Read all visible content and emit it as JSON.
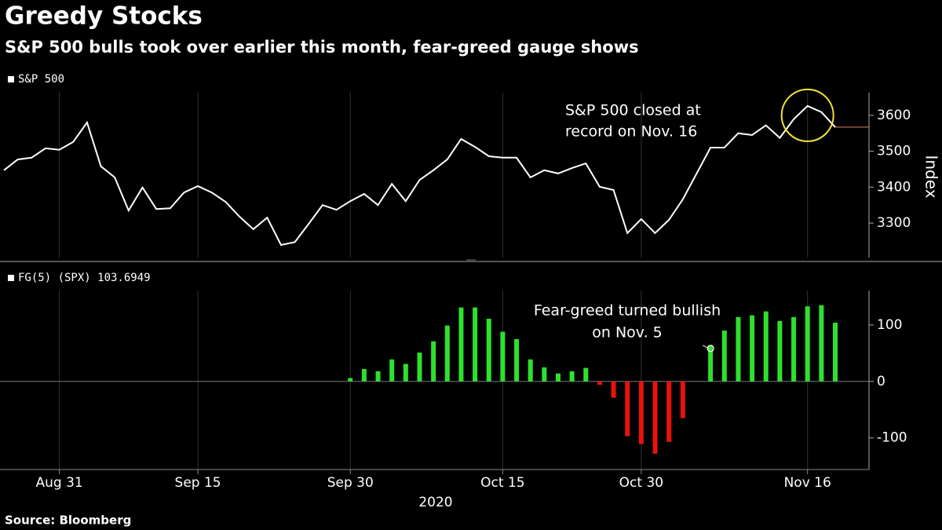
{
  "title": "Greedy Stocks",
  "subtitle": "S&P 500 bulls took over earlier this month, fear-greed gauge shows",
  "source": "Source: Bloomberg",
  "chart_data": [
    {
      "type": "line",
      "ylabel": "Index",
      "series": [
        {
          "name": "S&P 500",
          "color": "#ffffff",
          "values": [
            3447,
            3477,
            3482,
            3508,
            3504,
            3526,
            3580,
            3458,
            3427,
            3335,
            3399,
            3339,
            3341,
            3385,
            3403,
            3385,
            3359,
            3318,
            3283,
            3315,
            3239,
            3247,
            3298,
            3350,
            3337,
            3361,
            3381,
            3350,
            3409,
            3361,
            3420,
            3447,
            3477,
            3534,
            3512,
            3486,
            3482,
            3482,
            3427,
            3447,
            3438,
            3453,
            3466,
            3401,
            3392,
            3272,
            3311,
            3272,
            3309,
            3366,
            3438,
            3510,
            3510,
            3550,
            3545,
            3572,
            3537,
            3589,
            3626,
            3609,
            3567
          ]
        }
      ],
      "last_value_color": "#e0806a",
      "highlight_color": "#f2e33a",
      "ylim": [
        3204,
        3663
      ],
      "yticks": [
        3300,
        3400,
        3500,
        3600
      ],
      "annotation": {
        "lines": [
          "S&P 500 closed at",
          "record on Nov. 16"
        ]
      }
    },
    {
      "type": "bar",
      "categories": [
        null,
        null,
        null,
        null,
        "Aug 31",
        null,
        null,
        null,
        null,
        null,
        null,
        null,
        null,
        null,
        "Sep 15",
        null,
        null,
        null,
        null,
        null,
        null,
        null,
        null,
        null,
        null,
        "Sep 30",
        null,
        null,
        null,
        null,
        null,
        null,
        null,
        null,
        null,
        null,
        "Oct 15",
        null,
        null,
        null,
        null,
        null,
        null,
        null,
        null,
        null,
        "Oct 30",
        null,
        null,
        null,
        null,
        null,
        null,
        null,
        null,
        null,
        null,
        null,
        "Nov 16",
        null,
        null
      ],
      "xlabel": "2020",
      "series": [
        {
          "name": "FG(5) (SPX) 103.6949",
          "color": "#2ee02e",
          "negative_color": "#e8120c",
          "values": [
            null,
            null,
            null,
            null,
            null,
            null,
            null,
            null,
            null,
            null,
            null,
            null,
            null,
            null,
            null,
            null,
            null,
            null,
            null,
            null,
            null,
            null,
            null,
            null,
            null,
            6,
            22,
            18,
            39,
            31,
            51,
            71,
            99,
            131,
            131,
            111,
            88,
            75,
            39,
            25,
            14,
            18,
            24,
            -6,
            -29,
            -97,
            -111,
            -128,
            -107,
            -65,
            null,
            64,
            90,
            114,
            117,
            124,
            107,
            114,
            133,
            135,
            104
          ]
        }
      ],
      "ylim": [
        -156,
        161
      ],
      "yticks": [
        -100,
        0,
        100
      ],
      "annotation": {
        "lines": [
          "Fear-greed turned bullish",
          "on Nov. 5"
        ]
      }
    }
  ]
}
